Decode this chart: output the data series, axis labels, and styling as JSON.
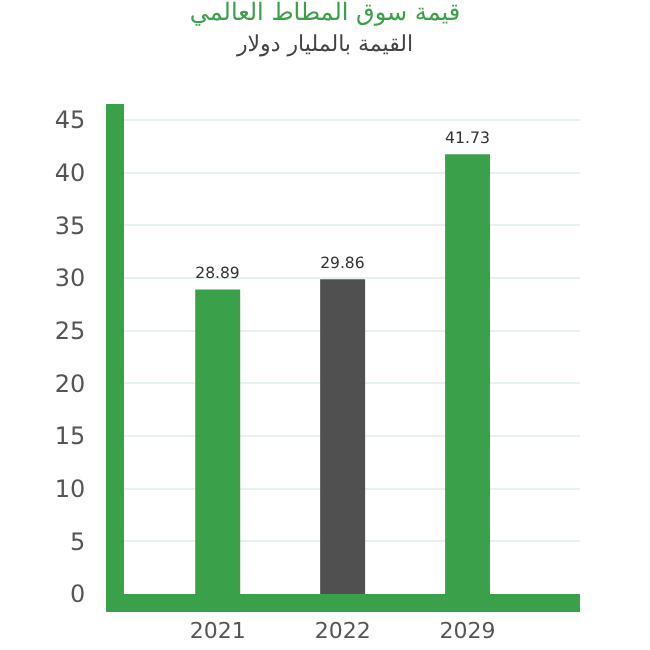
{
  "chart_data": {
    "type": "bar",
    "title": "قيمة سوق المطاط العالمي",
    "subtitle": "القيمة بالمليار دولار",
    "categories": [
      "2021",
      "2022",
      "2029"
    ],
    "values": [
      28.89,
      29.86,
      41.73
    ],
    "colors": [
      "#3aa04a",
      "#505050",
      "#3aa04a"
    ],
    "data_labels": true,
    "ylim": [
      0,
      46.5
    ],
    "yticks": [
      0,
      5,
      10,
      15,
      20,
      25,
      30,
      35,
      40,
      45
    ],
    "grid": "y"
  }
}
